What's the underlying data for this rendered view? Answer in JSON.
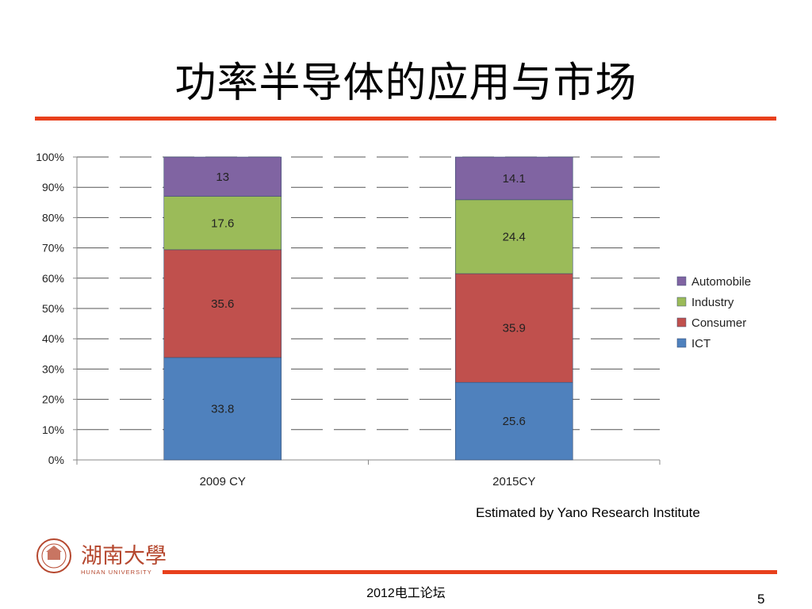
{
  "slide": {
    "title": "功率半导体的应用与市场",
    "source": "Estimated by Yano Research Institute",
    "footer": "2012电工论坛",
    "page_number": "5",
    "logo_text": "湖南大學",
    "logo_subtext": "HUNAN UNIVERSITY"
  },
  "colors": {
    "accent_rule": "#e8401c",
    "ICT": "#4f81bd",
    "Consumer": "#c0504d",
    "Industry": "#9bbb59",
    "Automobile": "#8064a2"
  },
  "chart_data": {
    "type": "bar",
    "stacked": true,
    "categories": [
      "2009 CY",
      "2015CY"
    ],
    "series": [
      {
        "name": "ICT",
        "values": [
          33.8,
          25.6
        ]
      },
      {
        "name": "Consumer",
        "values": [
          35.6,
          35.9
        ]
      },
      {
        "name": "Industry",
        "values": [
          17.6,
          24.4
        ]
      },
      {
        "name": "Automobile",
        "values": [
          13,
          14.1
        ]
      }
    ],
    "yticks": [
      "0%",
      "10%",
      "20%",
      "30%",
      "40%",
      "50%",
      "60%",
      "70%",
      "80%",
      "90%",
      "100%"
    ],
    "ylim": [
      0,
      100
    ],
    "legend_order": [
      "Automobile",
      "Industry",
      "Consumer",
      "ICT"
    ],
    "legend_position": "right",
    "grid": "dashed horizontal",
    "xlabel": "",
    "ylabel": ""
  }
}
